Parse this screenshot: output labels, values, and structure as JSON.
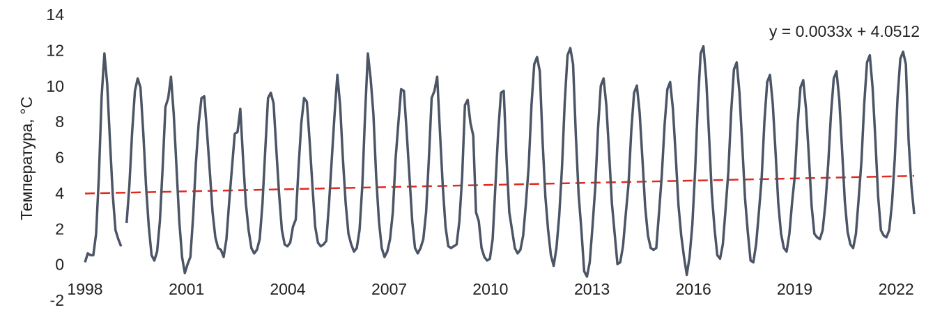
{
  "chart_data": {
    "type": "line",
    "y_label": "Температура, °C",
    "annotation": "y = 0.0033x + 4.0512",
    "series": [
      {
        "color": "#4b5566",
        "values": [
          0.2,
          0.7,
          0.6,
          0.6,
          1.8,
          5.0,
          9.5,
          11.9,
          10.2,
          7.0,
          4.0,
          2.0,
          1.5,
          1.1,
          null,
          2.4,
          4.5,
          7.5,
          9.8,
          10.5,
          10.0,
          7.5,
          4.5,
          2.2,
          0.6,
          0.3,
          0.8,
          2.5,
          5.5,
          8.9,
          9.4,
          10.6,
          8.5,
          5.5,
          2.5,
          0.5,
          -0.4,
          0.1,
          0.5,
          2.8,
          5.8,
          8.0,
          9.4,
          9.5,
          7.5,
          5.3,
          3.0,
          1.6,
          1.0,
          0.9,
          0.5,
          1.5,
          3.6,
          5.5,
          7.4,
          7.5,
          8.8,
          6.0,
          3.5,
          2.0,
          1.0,
          0.7,
          0.9,
          1.5,
          3.5,
          6.5,
          9.4,
          9.7,
          9.1,
          6.5,
          4.0,
          2.0,
          1.2,
          1.1,
          1.3,
          2.2,
          2.6,
          5.5,
          8.0,
          9.4,
          9.2,
          7.0,
          4.5,
          2.2,
          1.3,
          1.1,
          1.2,
          1.4,
          3.5,
          6.0,
          8.5,
          10.7,
          9.0,
          6.0,
          3.5,
          1.8,
          1.2,
          0.8,
          1.0,
          2.0,
          4.5,
          8.5,
          11.9,
          10.5,
          8.5,
          5.0,
          2.5,
          1.0,
          0.5,
          0.8,
          1.5,
          3.0,
          6.0,
          8.0,
          9.9,
          9.8,
          7.5,
          5.0,
          2.5,
          1.0,
          0.7,
          1.0,
          1.5,
          3.0,
          6.0,
          9.4,
          9.8,
          10.6,
          7.5,
          4.5,
          2.2,
          1.1,
          1.0,
          1.1,
          1.2,
          2.5,
          5.0,
          9.0,
          9.3,
          8.0,
          7.3,
          3.0,
          2.5,
          1.0,
          0.5,
          0.3,
          0.4,
          1.5,
          4.5,
          7.5,
          9.7,
          9.8,
          6.0,
          3.0,
          2.0,
          1.0,
          0.7,
          0.9,
          1.7,
          3.5,
          5.6,
          9.0,
          11.3,
          11.7,
          10.9,
          7.0,
          3.9,
          2.0,
          0.6,
          0.0,
          1.0,
          2.8,
          5.5,
          9.2,
          11.8,
          12.2,
          11.3,
          7.3,
          4.0,
          2.0,
          -0.3,
          -0.6,
          0.2,
          2.2,
          4.4,
          7.7,
          10.1,
          10.5,
          9.0,
          6.3,
          3.5,
          1.8,
          0.1,
          0.2,
          1.1,
          2.9,
          4.6,
          7.6,
          9.7,
          10.1,
          8.6,
          6.0,
          3.3,
          1.7,
          1.0,
          0.9,
          1.0,
          3.0,
          5.1,
          7.9,
          9.9,
          10.3,
          8.8,
          6.2,
          3.4,
          1.7,
          0.5,
          -0.5,
          0.5,
          2.3,
          5.3,
          9.1,
          11.9,
          12.3,
          10.5,
          7.4,
          4.1,
          2.1,
          0.6,
          0.4,
          1.2,
          3.2,
          5.3,
          8.6,
          11.0,
          11.4,
          9.7,
          6.8,
          3.8,
          1.9,
          0.3,
          0.2,
          1.2,
          3.0,
          4.9,
          8.1,
          10.3,
          10.7,
          9.1,
          6.4,
          3.5,
          1.8,
          1.0,
          0.8,
          1.8,
          3.6,
          5.1,
          8.0,
          10.0,
          10.4,
          8.8,
          6.2,
          3.4,
          1.8,
          1.6,
          1.5,
          2.0,
          3.5,
          5.7,
          8.5,
          10.5,
          10.9,
          9.3,
          6.5,
          3.6,
          1.9,
          1.2,
          1.0,
          1.8,
          3.8,
          5.9,
          9.1,
          11.4,
          11.8,
          10.0,
          7.1,
          3.9,
          2.0,
          1.7,
          1.6,
          2.0,
          3.5,
          6.0,
          9.4,
          11.6,
          12.0,
          11.3,
          7.0,
          4.5,
          2.9
        ]
      }
    ],
    "trendline": {
      "slope": 0.0033,
      "intercept": 4.0512,
      "color": "#e02a20",
      "dashed": true
    },
    "xlim": [
      0,
      300.5
    ],
    "xticks": [
      {
        "value": 0,
        "label": "1998"
      },
      {
        "value": 36.6,
        "label": "2001"
      },
      {
        "value": 73.1,
        "label": "2004"
      },
      {
        "value": 109.7,
        "label": "2007"
      },
      {
        "value": 146.2,
        "label": "2010"
      },
      {
        "value": 182.8,
        "label": "2013"
      },
      {
        "value": 219.4,
        "label": "2016"
      },
      {
        "value": 255.9,
        "label": "2019"
      },
      {
        "value": 292.5,
        "label": "2022"
      }
    ],
    "ylim": [
      -2,
      14
    ],
    "yticks": [
      -2,
      0,
      2,
      4,
      6,
      8,
      10,
      12,
      14
    ]
  }
}
